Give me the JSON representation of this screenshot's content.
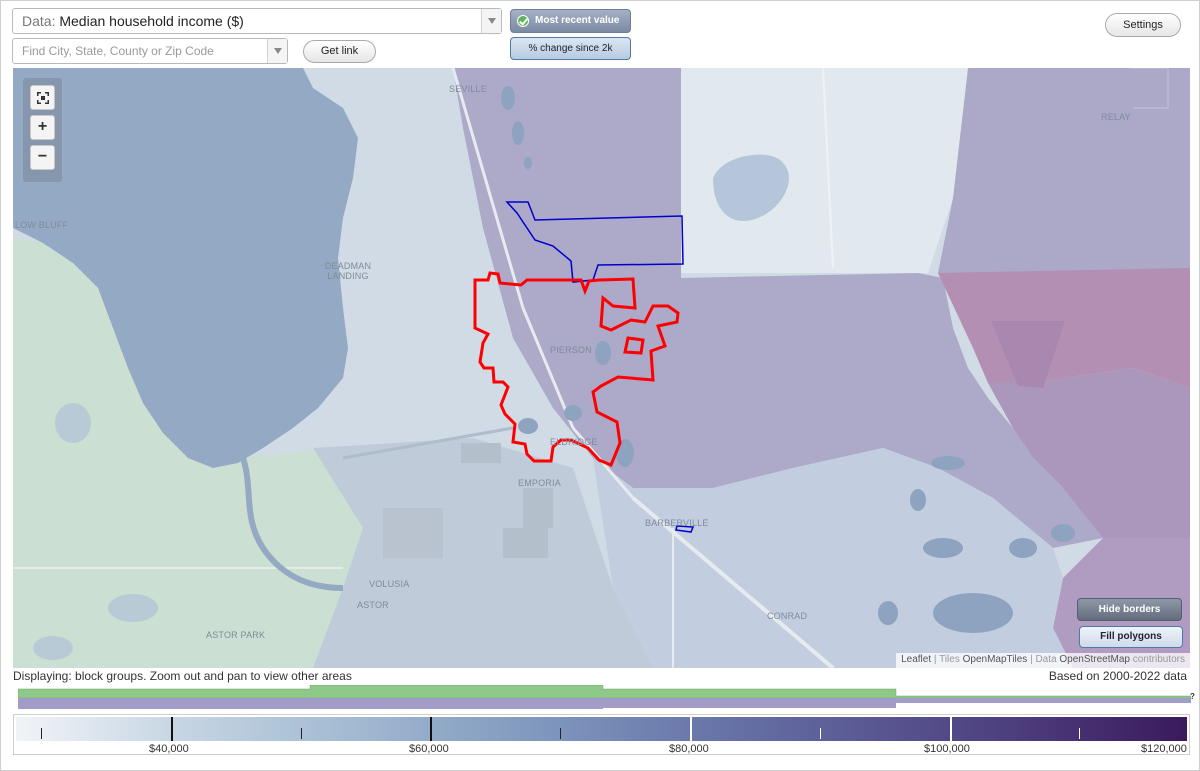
{
  "controls": {
    "data_label": "Data:",
    "data_value": "Median household income ($)",
    "search_placeholder": "Find City, State, County or Zip Code",
    "get_link": "Get link",
    "most_recent": "Most recent value",
    "pct_change": "% change since 2k",
    "settings": "Settings"
  },
  "map": {
    "places": [
      {
        "name": "SEVILLE"
      },
      {
        "name": "RELAY"
      },
      {
        "name": "LOW BLUFF"
      },
      {
        "name": "DEADMAN LANDING"
      },
      {
        "name": "PIERSON"
      },
      {
        "name": "ELDRIDGE"
      },
      {
        "name": "EMPORIA"
      },
      {
        "name": "BARBERVILLE"
      },
      {
        "name": "VOLUSIA"
      },
      {
        "name": "ASTOR"
      },
      {
        "name": "ASTOR PARK"
      },
      {
        "name": "CONRAD"
      }
    ],
    "hide_borders": "Hide borders",
    "fill_polygons": "Fill polygons",
    "attribution": {
      "leaflet": "Leaflet",
      "sep1": " | Tiles ",
      "tiles": "OpenMapTiles",
      "sep2": " | Data ",
      "data": "OpenStreetMap",
      "suffix": " contributors"
    },
    "colors": {
      "selected_outline": "#ff0000",
      "secondary_outline": "#0000cc",
      "lake": "#8ea3c0"
    }
  },
  "status": {
    "displaying": "Displaying: block groups. Zoom out and pan to view other areas",
    "based_on": "Based on 2000-2022 data"
  },
  "legend": {
    "labels": [
      "$40,000",
      "$60,000",
      "$80,000",
      "$100,000",
      "$120,000"
    ],
    "question": "?"
  }
}
